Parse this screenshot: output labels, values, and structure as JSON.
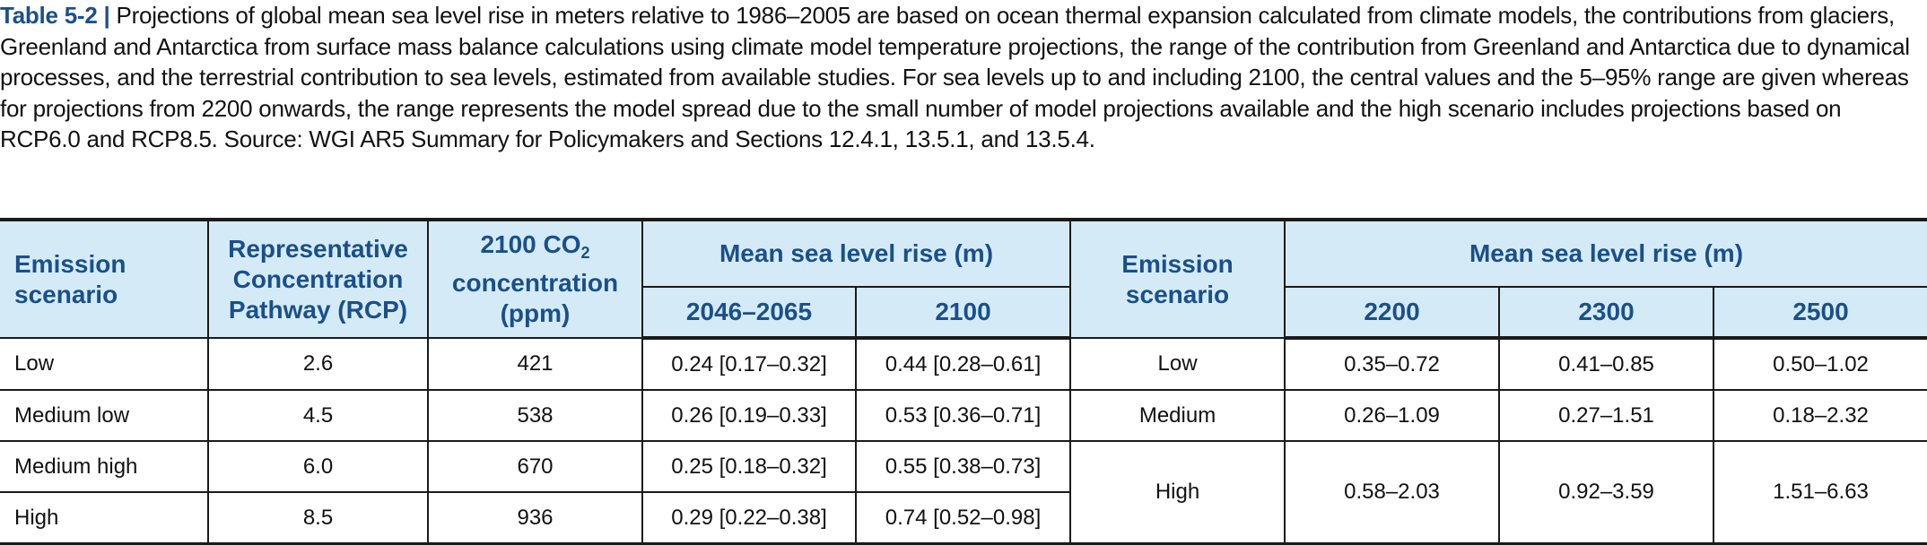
{
  "caption": {
    "label": "Table 5-2",
    "separator": "|",
    "text": " Projections of global mean sea level rise in meters relative to 1986–2005 are based on ocean thermal expansion calculated from climate models, the contributions from glaciers, Greenland and Antarctica from surface mass balance calculations using climate model temperature projections, the range of the contribution from Greenland and Antarctica due to dynamical processes, and the terrestrial contribution to sea levels, estimated from available studies. For sea levels up to and including 2100, the central values and the 5–95% range are given whereas for projections from 2200 onwards, the range represents the model spread due to the small number of model projections available and the high scenario includes projections based on RCP6.0 and RCP8.5. Source: WGI AR5 Summary for Policymakers and Sections 12.4.1, 13.5.1, and 13.5.4."
  },
  "table": {
    "headers": {
      "emission_scenario": "Emission scenario",
      "rcp": "Representative Concentration Pathway (RCP)",
      "co2_pre": "2100 CO",
      "co2_sub": "2",
      "co2_post": " concentration (ppm)",
      "mean_sea_level_rise": "Mean sea level rise (m)",
      "y2046": "2046–2065",
      "y2100": "2100",
      "emission_scenario_2": "Emission scenario",
      "mean_sea_level_rise_2": "Mean sea level rise (m)",
      "y2200": "2200",
      "y2300": "2300",
      "y2500": "2500"
    },
    "rows": [
      {
        "scenario": "Low",
        "rcp": "2.6",
        "co2": "421",
        "y2046": "0.24 [0.17–0.32]",
        "y2100": "0.44 [0.28–0.61]"
      },
      {
        "scenario": "Medium low",
        "rcp": "4.5",
        "co2": "538",
        "y2046": "0.26 [0.19–0.33]",
        "y2100": "0.53 [0.36–0.71]"
      },
      {
        "scenario": "Medium high",
        "rcp": "6.0",
        "co2": "670",
        "y2046": "0.25 [0.18–0.32]",
        "y2100": "0.55 [0.38–0.73]"
      },
      {
        "scenario": "High",
        "rcp": "8.5",
        "co2": "936",
        "y2046": "0.29 [0.22–0.38]",
        "y2100": "0.74 [0.52–0.98]"
      }
    ],
    "long_rows": [
      {
        "scenario": "Low",
        "y2200": "0.35–0.72",
        "y2300": "0.41–0.85",
        "y2500": "0.50–1.02"
      },
      {
        "scenario": "Medium",
        "y2200": "0.26–1.09",
        "y2300": "0.27–1.51",
        "y2500": "0.18–2.32"
      },
      {
        "scenario": "High",
        "y2200": "0.58–2.03",
        "y2300": "0.92–3.59",
        "y2500": "1.51–6.63"
      }
    ]
  }
}
